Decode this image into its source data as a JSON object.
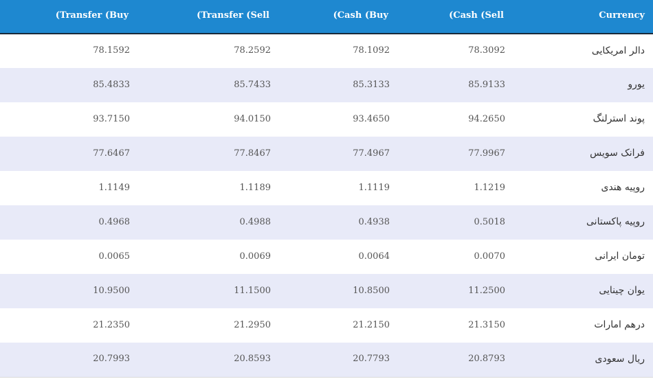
{
  "headers": {
    "currency": "Currency",
    "cash_sell": "(Cash (Sell",
    "cash_buy": "(Cash (Buy",
    "transfer_sell": "(Transfer (Sell",
    "transfer_buy": "(Transfer (Buy"
  },
  "rows": [
    {
      "currency": "دالر امریکایی",
      "cash_sell": "78.3092",
      "cash_buy": "78.1092",
      "transfer_sell": "78.2592",
      "transfer_buy": "78.1592"
    },
    {
      "currency": "یورو",
      "cash_sell": "85.9133",
      "cash_buy": "85.3133",
      "transfer_sell": "85.7433",
      "transfer_buy": "85.4833"
    },
    {
      "currency": "پوند استرلنگ",
      "cash_sell": "94.2650",
      "cash_buy": "93.4650",
      "transfer_sell": "94.0150",
      "transfer_buy": "93.7150"
    },
    {
      "currency": "فرانک سویس",
      "cash_sell": "77.9967",
      "cash_buy": "77.4967",
      "transfer_sell": "77.8467",
      "transfer_buy": "77.6467"
    },
    {
      "currency": "روپیه هندی",
      "cash_sell": "1.1219",
      "cash_buy": "1.1119",
      "transfer_sell": "1.1189",
      "transfer_buy": "1.1149"
    },
    {
      "currency": "روپیه پاکستانی",
      "cash_sell": "0.5018",
      "cash_buy": "0.4938",
      "transfer_sell": "0.4988",
      "transfer_buy": "0.4968"
    },
    {
      "currency": "تومان ایرانی",
      "cash_sell": "0.0070",
      "cash_buy": "0.0064",
      "transfer_sell": "0.0069",
      "transfer_buy": "0.0065"
    },
    {
      "currency": "یوان چینایی",
      "cash_sell": "11.2500",
      "cash_buy": "10.8500",
      "transfer_sell": "11.1500",
      "transfer_buy": "10.9500"
    },
    {
      "currency": "درهم امارات",
      "cash_sell": "21.3150",
      "cash_buy": "21.2150",
      "transfer_sell": "21.2950",
      "transfer_buy": "21.2350"
    },
    {
      "currency": "ریال سعودی",
      "cash_sell": "20.8793",
      "cash_buy": "20.7793",
      "transfer_sell": "20.8593",
      "transfer_buy": "20.7993"
    }
  ],
  "colors": {
    "header_bg": "#1e88d0",
    "header_text": "#ffffff",
    "stripe_bg": "#e8eaf8",
    "row_bg": "#ffffff"
  }
}
